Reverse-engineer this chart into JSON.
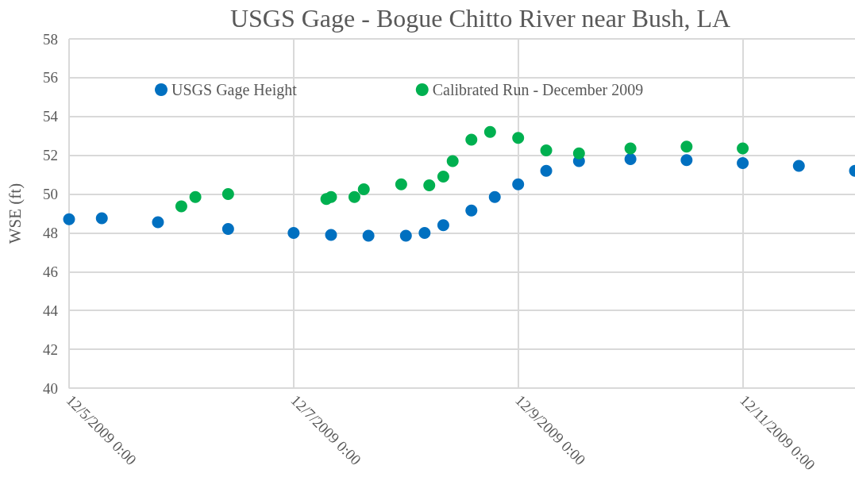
{
  "chart_data": {
    "type": "scatter",
    "title": "USGS Gage - Bogue Chitto River near Bush, LA",
    "ylabel": "WSE (ft)",
    "ylim": [
      40,
      58
    ],
    "yticks": [
      40,
      42,
      44,
      46,
      48,
      50,
      52,
      54,
      56,
      58
    ],
    "xlim": [
      "2009-12-05T00:00",
      "2009-12-12T00:00"
    ],
    "xticks": [
      {
        "value": "2009-12-05T00:00",
        "label": "12/5/2009 0:00"
      },
      {
        "value": "2009-12-07T00:00",
        "label": "12/7/2009 0:00"
      },
      {
        "value": "2009-12-09T00:00",
        "label": "12/9/2009 0:00"
      },
      {
        "value": "2009-12-11T00:00",
        "label": "12/11/2009 0:00"
      }
    ],
    "grid": true,
    "legend": "top",
    "marker": "circle",
    "series": [
      {
        "name": "USGS Gage Height",
        "color": "#0070c0",
        "x": [
          "2009-12-05T00:00",
          "2009-12-05T07:00",
          "2009-12-05T19:00",
          "2009-12-06T10:00",
          "2009-12-07T00:00",
          "2009-12-07T08:00",
          "2009-12-07T16:00",
          "2009-12-08T00:00",
          "2009-12-08T04:00",
          "2009-12-08T08:00",
          "2009-12-08T14:00",
          "2009-12-08T19:00",
          "2009-12-09T00:00",
          "2009-12-09T06:00",
          "2009-12-09T13:00",
          "2009-12-10T00:00",
          "2009-12-10T12:00",
          "2009-12-11T00:00",
          "2009-12-11T12:00",
          "2009-12-12T00:00"
        ],
        "values": [
          48.7,
          48.75,
          48.55,
          48.2,
          48.0,
          47.9,
          47.85,
          47.85,
          48.0,
          48.4,
          49.15,
          49.85,
          50.5,
          51.2,
          51.7,
          51.8,
          51.75,
          51.6,
          51.45,
          51.2
        ]
      },
      {
        "name": "Calibrated Run - December 2009",
        "color": "#00b050",
        "x": [
          "2009-12-06T00:00",
          "2009-12-06T03:00",
          "2009-12-06T10:00",
          "2009-12-07T07:00",
          "2009-12-07T08:00",
          "2009-12-07T13:00",
          "2009-12-07T15:00",
          "2009-12-07T23:00",
          "2009-12-08T05:00",
          "2009-12-08T08:00",
          "2009-12-08T10:00",
          "2009-12-08T14:00",
          "2009-12-08T18:00",
          "2009-12-09T00:00",
          "2009-12-09T06:00",
          "2009-12-09T13:00",
          "2009-12-10T00:00",
          "2009-12-10T12:00",
          "2009-12-11T00:00"
        ],
        "values": [
          49.37,
          49.85,
          50.0,
          49.75,
          49.85,
          49.85,
          50.25,
          50.5,
          50.45,
          50.9,
          51.7,
          52.8,
          53.2,
          52.9,
          52.25,
          52.1,
          52.35,
          52.45,
          52.35
        ]
      }
    ]
  }
}
